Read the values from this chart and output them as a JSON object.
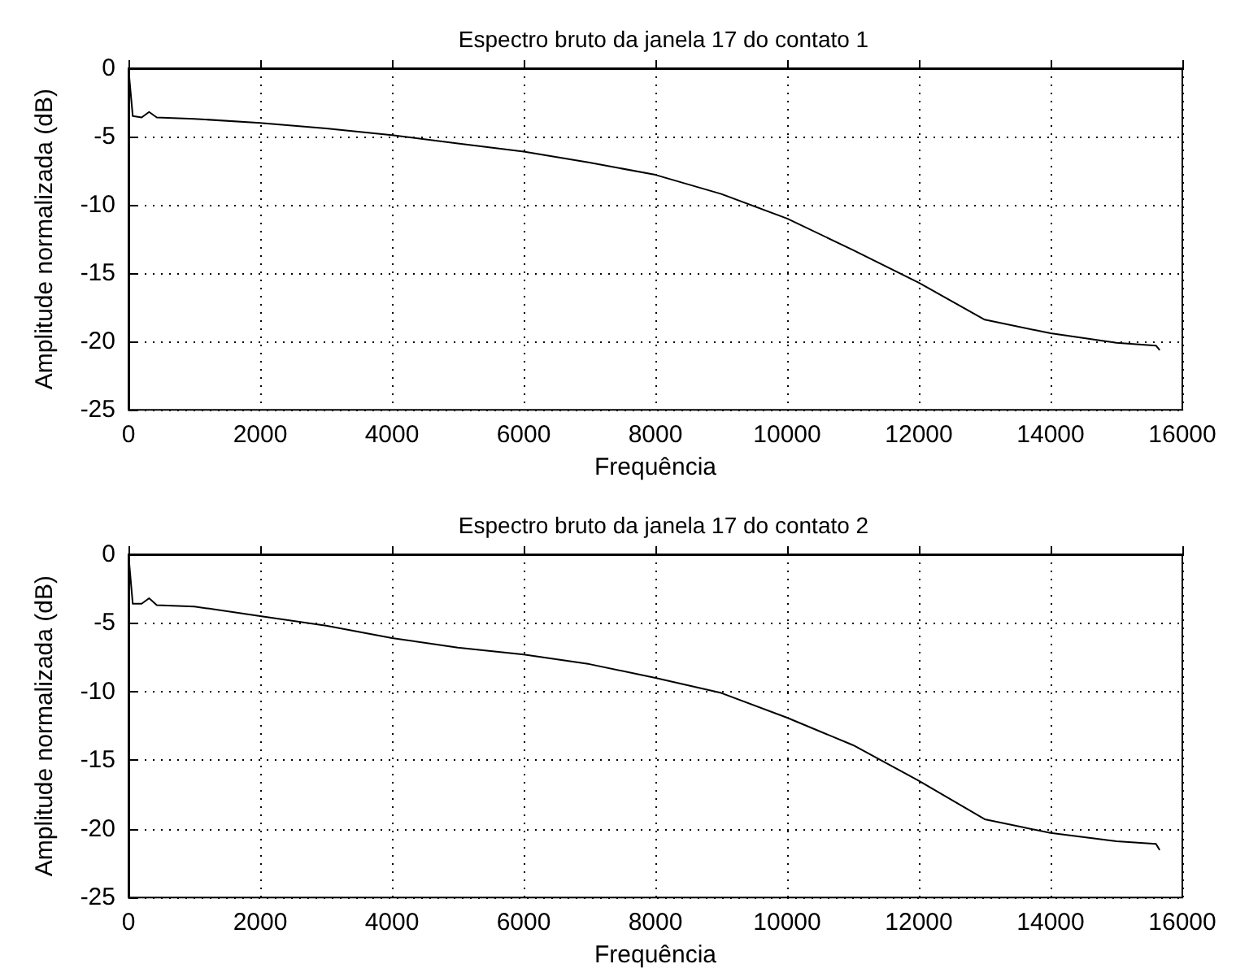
{
  "chart_data": [
    {
      "type": "line",
      "title": "Espectro bruto da janela 17 do contato 1",
      "xlabel": "Frequência",
      "ylabel": "Amplitude normalizada (dB)",
      "x": [
        0,
        65,
        200,
        313,
        430,
        1000,
        2000,
        3000,
        4000,
        5000,
        6000,
        7000,
        8000,
        9000,
        10000,
        11000,
        12000,
        13000,
        14000,
        15000,
        15600,
        15650
      ],
      "series": [
        {
          "color": "#000000",
          "values": [
            0,
            -3.5,
            -3.6,
            -3.2,
            -3.6,
            -3.7,
            -4.0,
            -4.4,
            -4.9,
            -5.5,
            -6.1,
            -6.9,
            -7.8,
            -9.2,
            -11.0,
            -13.3,
            -15.7,
            -18.4,
            -19.4,
            -20.1,
            -20.3,
            -20.6
          ]
        }
      ],
      "xlim": [
        0,
        16000
      ],
      "xticks": [
        0,
        2000,
        4000,
        6000,
        8000,
        10000,
        12000,
        14000,
        16000
      ],
      "ylim": [
        -25,
        0
      ],
      "yticks": [
        -25,
        -20,
        -15,
        -10,
        -5,
        0
      ],
      "grid": true,
      "marker": "none",
      "line_style": "solid"
    },
    {
      "type": "line",
      "title": "Espectro bruto da janela 17 do contato 2",
      "xlabel": "Frequência",
      "ylabel": "Amplitude normalizada (dB)",
      "x": [
        0,
        65,
        200,
        313,
        430,
        1000,
        2000,
        3000,
        4000,
        5000,
        6000,
        7000,
        8000,
        9000,
        10000,
        11000,
        12000,
        13000,
        14000,
        15000,
        15600,
        15650
      ],
      "series": [
        {
          "color": "#000000",
          "values": [
            0,
            -3.6,
            -3.6,
            -3.2,
            -3.7,
            -3.8,
            -4.5,
            -5.2,
            -6.1,
            -6.8,
            -7.3,
            -8.0,
            -9.0,
            -10.1,
            -11.9,
            -13.9,
            -16.5,
            -19.3,
            -20.3,
            -20.9,
            -21.1,
            -21.5
          ]
        }
      ],
      "xlim": [
        0,
        16000
      ],
      "xticks": [
        0,
        2000,
        4000,
        6000,
        8000,
        10000,
        12000,
        14000,
        16000
      ],
      "ylim": [
        -25,
        0
      ],
      "yticks": [
        -25,
        -20,
        -15,
        -10,
        -5,
        0
      ],
      "grid": true,
      "marker": "none",
      "line_style": "solid"
    }
  ]
}
